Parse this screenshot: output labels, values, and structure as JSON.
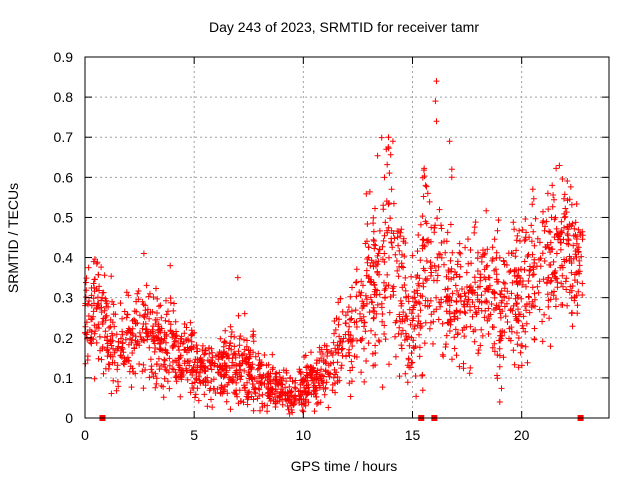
{
  "chart_data": {
    "type": "scatter",
    "title": "Day 243 of 2023, SRMTID for receiver tamr",
    "xlabel": "GPS time / hours",
    "ylabel": "SRMTID / TECUs",
    "xlim": [
      0,
      24
    ],
    "ylim": [
      0,
      0.9
    ],
    "x_ticks": [
      0,
      5,
      10,
      15,
      20
    ],
    "x_tick_labels": [
      "0",
      "5",
      "10",
      "15",
      "20"
    ],
    "y_ticks": [
      0,
      0.1,
      0.2,
      0.3,
      0.4,
      0.5,
      0.6,
      0.7,
      0.8,
      0.9
    ],
    "y_tick_labels": [
      "0",
      "0.1",
      "0.2",
      "0.3",
      "0.4",
      "0.5",
      "0.6",
      "0.7",
      "0.8",
      "0.9"
    ],
    "grid": true,
    "marker": "+",
    "series_color": "#ff0000",
    "trend_profile": {
      "name": "SRMTID",
      "hours": [
        0.0,
        0.5,
        1.0,
        1.5,
        2.0,
        2.5,
        3.0,
        3.5,
        4.0,
        4.5,
        5.0,
        5.5,
        6.0,
        6.5,
        7.0,
        7.5,
        8.0,
        8.5,
        9.0,
        9.5,
        10.0,
        10.5,
        11.0,
        11.5,
        12.0,
        12.5,
        13.0,
        13.5,
        14.0,
        14.5,
        15.0,
        15.5,
        16.0,
        16.5,
        17.0,
        17.5,
        18.0,
        18.5,
        19.0,
        19.5,
        20.0,
        20.5,
        21.0,
        21.5,
        22.0,
        22.5,
        22.8
      ],
      "median": [
        0.25,
        0.26,
        0.22,
        0.17,
        0.2,
        0.22,
        0.2,
        0.18,
        0.17,
        0.16,
        0.13,
        0.12,
        0.12,
        0.13,
        0.14,
        0.12,
        0.1,
        0.09,
        0.07,
        0.06,
        0.08,
        0.1,
        0.12,
        0.16,
        0.2,
        0.25,
        0.32,
        0.38,
        0.45,
        0.3,
        0.22,
        0.4,
        0.38,
        0.33,
        0.28,
        0.3,
        0.32,
        0.3,
        0.28,
        0.3,
        0.32,
        0.35,
        0.36,
        0.4,
        0.42,
        0.4,
        0.38
      ],
      "spread": [
        0.07,
        0.08,
        0.08,
        0.07,
        0.07,
        0.08,
        0.08,
        0.07,
        0.06,
        0.06,
        0.05,
        0.05,
        0.05,
        0.06,
        0.07,
        0.06,
        0.05,
        0.04,
        0.03,
        0.03,
        0.04,
        0.04,
        0.05,
        0.06,
        0.08,
        0.1,
        0.12,
        0.15,
        0.18,
        0.12,
        0.1,
        0.16,
        0.15,
        0.12,
        0.1,
        0.1,
        0.11,
        0.1,
        0.1,
        0.11,
        0.12,
        0.12,
        0.12,
        0.12,
        0.11,
        0.1,
        0.09
      ]
    },
    "points_per_hour": 90,
    "data_end_hour": 22.8,
    "labeled_outliers": [
      {
        "x": 13.9,
        "y": 0.7
      },
      {
        "x": 14.1,
        "y": 0.69
      },
      {
        "x": 13.8,
        "y": 0.67
      },
      {
        "x": 16.1,
        "y": 0.84
      },
      {
        "x": 16.05,
        "y": 0.79
      },
      {
        "x": 16.1,
        "y": 0.74
      },
      {
        "x": 16.7,
        "y": 0.69
      },
      {
        "x": 16.8,
        "y": 0.62
      },
      {
        "x": 16.8,
        "y": 0.6
      },
      {
        "x": 15.6,
        "y": 0.58
      },
      {
        "x": 15.7,
        "y": 0.56
      },
      {
        "x": 19.0,
        "y": 0.04
      },
      {
        "x": 2.7,
        "y": 0.41
      },
      {
        "x": 3.9,
        "y": 0.38
      },
      {
        "x": 7.0,
        "y": 0.35
      },
      {
        "x": 0.4,
        "y": 0.39
      },
      {
        "x": 21.4,
        "y": 0.58
      },
      {
        "x": 21.2,
        "y": 0.56
      }
    ],
    "axis_markers": [
      {
        "x": 0.8,
        "y": 0
      },
      {
        "x": 15.4,
        "y": 0
      },
      {
        "x": 16.0,
        "y": 0
      },
      {
        "x": 22.7,
        "y": 0
      }
    ]
  }
}
